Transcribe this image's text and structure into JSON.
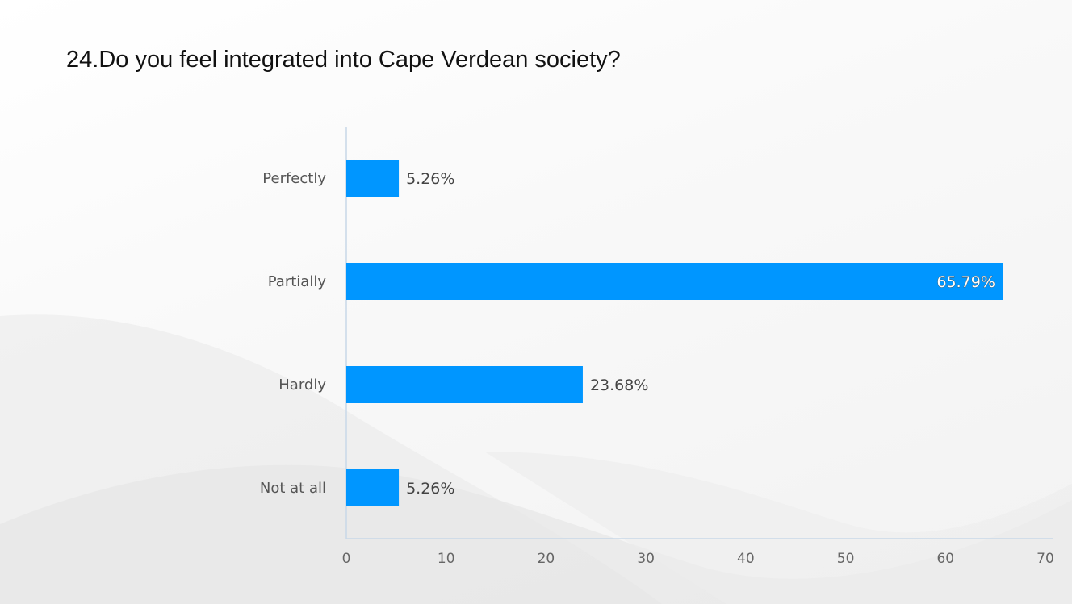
{
  "title": "24.Do you feel integrated into Cape Verdean society?",
  "colors": {
    "bar": "#0096FF",
    "axis": "#c8d8e8"
  },
  "chart_data": {
    "type": "bar",
    "orientation": "horizontal",
    "title": "24.Do you feel integrated into Cape Verdean society?",
    "categories": [
      "Perfectly",
      "Partially",
      "Hardly",
      "Not at all"
    ],
    "values": [
      5.26,
      65.79,
      23.68,
      5.26
    ],
    "data_labels": [
      "5.26%",
      "65.79%",
      "23.68%",
      "5.26%"
    ],
    "xlim": [
      0,
      70
    ],
    "x_ticks": [
      "0",
      "10",
      "20",
      "30",
      "40",
      "50",
      "60",
      "70"
    ],
    "grid": false,
    "legend": "none"
  }
}
